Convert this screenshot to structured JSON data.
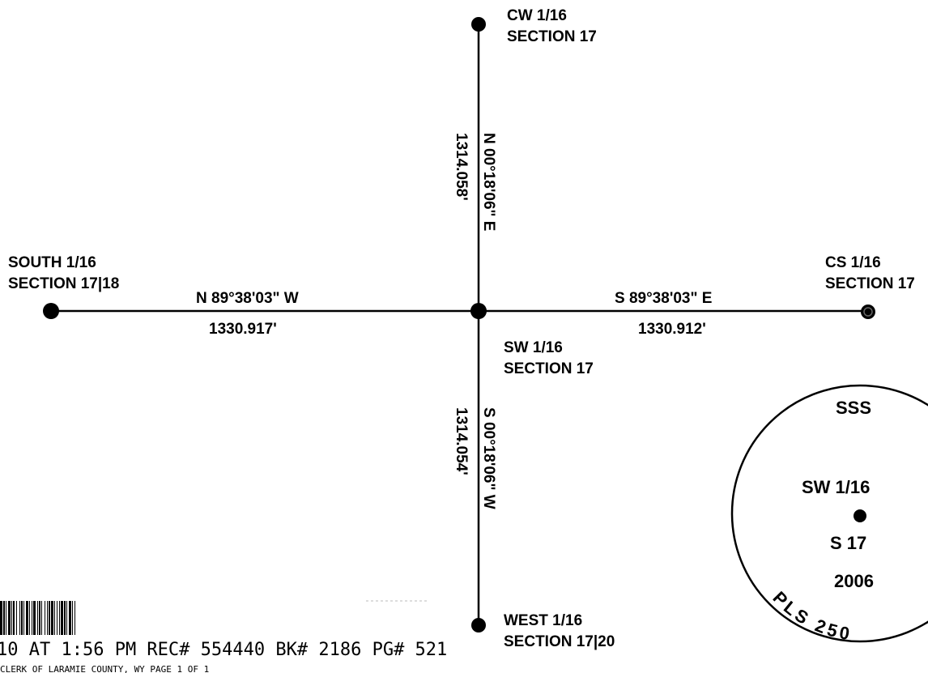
{
  "corners": {
    "north": {
      "line1": "CW 1/16",
      "line2": "SECTION 17"
    },
    "west": {
      "line1": "SOUTH 1/16",
      "line2": "SECTION 17|18"
    },
    "east": {
      "line1": "CS 1/16",
      "line2": "SECTION 17"
    },
    "center": {
      "line1": "SW 1/16",
      "line2": "SECTION 17"
    },
    "south": {
      "line1": "WEST 1/16",
      "line2": "SECTION 17|20"
    }
  },
  "lines": {
    "north": {
      "bearing": "N 00°18'06\" E",
      "distance": "1314.058'"
    },
    "west": {
      "bearing": "N 89°38'03\" W",
      "distance": "1330.917'"
    },
    "east": {
      "bearing": "S 89°38'03\" E",
      "distance": "1330.912'"
    },
    "south": {
      "bearing": "S 00°18'06\" W",
      "distance": "1314.054'"
    }
  },
  "monument_cap": {
    "top": "SSS",
    "corner": "SW 1/16",
    "section": "S 17",
    "year": "2006",
    "arc_text": "PLS 250"
  },
  "recording_stamp": {
    "line1": "10 AT  1:56 PM REC#   554440 BK# 2186 PG#  521",
    "line2": "CLERK OF LARAMIE COUNTY, WY  PAGE    1 OF    1"
  }
}
